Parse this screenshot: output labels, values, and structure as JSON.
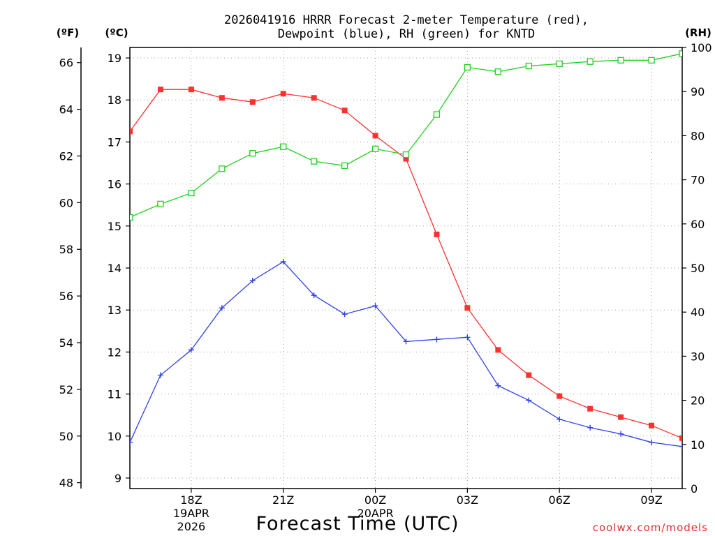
{
  "chart_data": {
    "type": "line",
    "title_line1": "2026041916 HRRR Forecast 2-meter Temperature (red),",
    "title_line2": "Dewpoint (blue), RH (green) for KNTD",
    "xlabel": "Forecast Time (UTC)",
    "units": {
      "fahrenheit": "(ºF)",
      "celsius": "(ºC)",
      "rh": "(RH)"
    },
    "credit": "coolwx.com/models",
    "hours_from_start": [
      0,
      1,
      2,
      3,
      4,
      5,
      6,
      7,
      8,
      9,
      10,
      11,
      12,
      13,
      14,
      15,
      16,
      17,
      18
    ],
    "x_range": [
      0,
      18
    ],
    "x_ticks": [
      {
        "hour": 2,
        "label": "18Z",
        "sub1": "19APR",
        "sub2": "2026"
      },
      {
        "hour": 5,
        "label": "21Z",
        "sub1": "",
        "sub2": ""
      },
      {
        "hour": 8,
        "label": "00Z",
        "sub1": "20APR",
        "sub2": ""
      },
      {
        "hour": 11,
        "label": "03Z",
        "sub1": "",
        "sub2": ""
      },
      {
        "hour": 14,
        "label": "06Z",
        "sub1": "",
        "sub2": ""
      },
      {
        "hour": 17,
        "label": "09Z",
        "sub1": "",
        "sub2": ""
      }
    ],
    "celsius_axis": {
      "range": [
        8.75,
        19.25
      ],
      "ticks": [
        "9",
        "10",
        "11",
        "12",
        "13",
        "14",
        "15",
        "16",
        "17",
        "18",
        "19"
      ]
    },
    "fahrenheit_axis": {
      "ticks": [
        "48",
        "50",
        "52",
        "54",
        "56",
        "58",
        "60",
        "62",
        "64",
        "66"
      ]
    },
    "rh_axis": {
      "range": [
        0,
        100
      ],
      "ticks": [
        "0",
        "10",
        "20",
        "30",
        "40",
        "50",
        "60",
        "70",
        "80",
        "90",
        "100"
      ]
    },
    "series": [
      {
        "name": "Temperature",
        "unit": "C",
        "color": "#ff3030",
        "marker": "filled-square",
        "values": [
          17.25,
          18.25,
          18.25,
          18.05,
          17.95,
          18.15,
          18.05,
          17.75,
          17.15,
          16.6,
          14.8,
          13.05,
          12.05,
          11.45,
          10.95,
          10.65,
          10.45,
          10.25,
          9.95
        ]
      },
      {
        "name": "Dewpoint",
        "unit": "C",
        "color": "#3040f0",
        "marker": "plus",
        "values": [
          9.85,
          11.45,
          12.05,
          13.05,
          13.7,
          14.15,
          13.35,
          12.9,
          13.1,
          12.25,
          12.3,
          12.35,
          11.2,
          10.85,
          10.4,
          10.2,
          10.05,
          9.85,
          9.75
        ]
      },
      {
        "name": "RH",
        "unit": "%",
        "color": "#20d020",
        "marker": "open-square",
        "values": [
          61.5,
          64.5,
          67.0,
          72.5,
          76.0,
          77.5,
          74.2,
          73.2,
          77.0,
          75.7,
          84.8,
          95.5,
          94.5,
          95.8,
          96.3,
          96.8,
          97.1,
          97.1,
          98.6
        ]
      }
    ]
  }
}
